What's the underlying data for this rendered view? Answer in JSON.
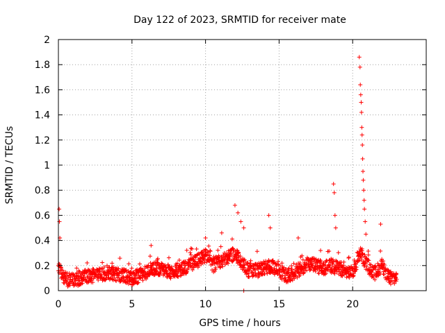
{
  "chart_data": {
    "type": "scatter",
    "title": "Day 122 of 2023, SRMTID for receiver mate",
    "xlabel": "GPS time / hours",
    "ylabel": "SRMTID / TECUs",
    "xlim": [
      0,
      25
    ],
    "ylim": [
      0,
      2
    ],
    "grid": true,
    "marker": "+",
    "marker_color": "#ff0000",
    "x_ticks": [
      0,
      5,
      10,
      15,
      20
    ],
    "x_tick_labels": [
      "0",
      "5",
      "10",
      "15",
      "20"
    ],
    "y_ticks": [
      0,
      0.2,
      0.4,
      0.6,
      0.8,
      1,
      1.2,
      1.4,
      1.6,
      1.8,
      2
    ],
    "y_tick_labels": [
      "0",
      "0.2",
      "0.4",
      "0.6",
      "0.8",
      "1",
      "1.2",
      "1.4",
      "1.6",
      "1.8",
      "2"
    ],
    "series": [
      {
        "name": "SRMTID",
        "baseline": [
          [
            0.0,
            0.18
          ],
          [
            0.5,
            0.09
          ],
          [
            1.0,
            0.08
          ],
          [
            1.5,
            0.1
          ],
          [
            2.0,
            0.12
          ],
          [
            2.5,
            0.12
          ],
          [
            3.0,
            0.13
          ],
          [
            3.5,
            0.14
          ],
          [
            4.0,
            0.13
          ],
          [
            4.5,
            0.12
          ],
          [
            5.0,
            0.1
          ],
          [
            5.5,
            0.12
          ],
          [
            6.0,
            0.15
          ],
          [
            6.5,
            0.18
          ],
          [
            7.0,
            0.17
          ],
          [
            7.5,
            0.15
          ],
          [
            8.0,
            0.16
          ],
          [
            8.5,
            0.18
          ],
          [
            9.0,
            0.2
          ],
          [
            9.5,
            0.24
          ],
          [
            10.0,
            0.28
          ],
          [
            10.5,
            0.2
          ],
          [
            11.0,
            0.24
          ],
          [
            11.5,
            0.26
          ],
          [
            12.0,
            0.3
          ],
          [
            12.5,
            0.22
          ],
          [
            13.0,
            0.15
          ],
          [
            13.5,
            0.16
          ],
          [
            14.0,
            0.18
          ],
          [
            14.5,
            0.2
          ],
          [
            15.0,
            0.16
          ],
          [
            15.5,
            0.12
          ],
          [
            16.0,
            0.14
          ],
          [
            16.5,
            0.18
          ],
          [
            17.0,
            0.22
          ],
          [
            17.5,
            0.2
          ],
          [
            18.0,
            0.18
          ],
          [
            18.5,
            0.2
          ],
          [
            19.0,
            0.18
          ],
          [
            19.5,
            0.15
          ],
          [
            20.0,
            0.15
          ],
          [
            20.5,
            0.3
          ],
          [
            21.0,
            0.2
          ],
          [
            21.5,
            0.14
          ],
          [
            22.0,
            0.2
          ],
          [
            22.5,
            0.1
          ],
          [
            23.0,
            0.09
          ]
        ],
        "spikes": [
          [
            0.05,
            0.65
          ],
          [
            0.07,
            0.55
          ],
          [
            0.1,
            0.42
          ],
          [
            6.3,
            0.36
          ],
          [
            10.0,
            0.42
          ],
          [
            11.1,
            0.46
          ],
          [
            12.0,
            0.68
          ],
          [
            12.2,
            0.62
          ],
          [
            12.4,
            0.55
          ],
          [
            12.6,
            0.5
          ],
          [
            14.3,
            0.6
          ],
          [
            14.4,
            0.5
          ],
          [
            16.3,
            0.42
          ],
          [
            18.7,
            0.85
          ],
          [
            18.75,
            0.78
          ],
          [
            18.8,
            0.6
          ],
          [
            18.85,
            0.5
          ],
          [
            20.45,
            1.86
          ],
          [
            20.5,
            1.78
          ],
          [
            20.52,
            1.64
          ],
          [
            20.55,
            1.56
          ],
          [
            20.58,
            1.5
          ],
          [
            20.6,
            1.42
          ],
          [
            20.62,
            1.3
          ],
          [
            20.64,
            1.24
          ],
          [
            20.66,
            1.16
          ],
          [
            20.68,
            1.05
          ],
          [
            20.7,
            0.95
          ],
          [
            20.72,
            0.88
          ],
          [
            20.75,
            0.8
          ],
          [
            20.78,
            0.72
          ],
          [
            20.8,
            0.65
          ],
          [
            20.85,
            0.55
          ],
          [
            20.9,
            0.45
          ],
          [
            21.9,
            0.53
          ],
          [
            12.6,
            0.0
          ]
        ]
      }
    ]
  }
}
